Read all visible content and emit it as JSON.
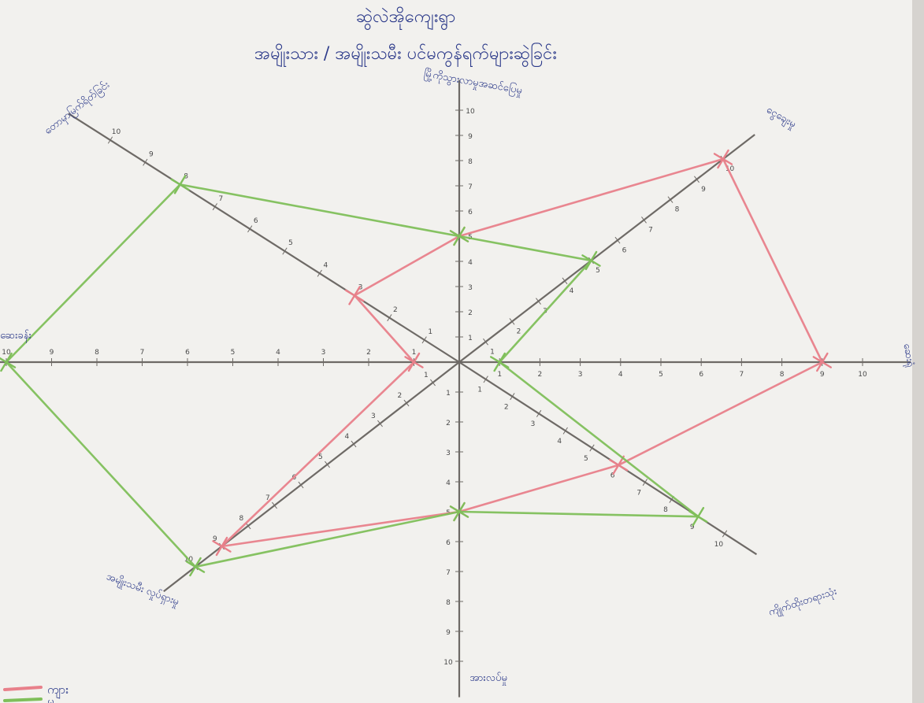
{
  "chart_data": {
    "type": "radar",
    "title": "ဆွဲလဲအိုကျေးရွာ",
    "subtitle": "အမျိုးသား / အမျိုးသမီး ပင်မကွန်ရက်များဆွဲခြင်း",
    "axis_max": 10,
    "axes": [
      "မြို့ကိုသွားလာမှုအဆင်ပြေမှု",
      "ငွေချေးမှု",
      "ဆေးရုံ",
      "ကျိုက်ထိုးတရားသုံး",
      "အားလပ်မှု",
      "အမျိုးသမီး လှုပ်ရှားမှု",
      "ဆေးခန်း",
      "တောမှာမြက်ရိတ်ခြင်း"
    ],
    "series": [
      {
        "name": "ကျား",
        "color": "#e8808a",
        "values": [
          5,
          10,
          9,
          6,
          5,
          9,
          1,
          3
        ]
      },
      {
        "name": "မ",
        "color": "#7fbf5a",
        "values": [
          5,
          5,
          1,
          9,
          5,
          10,
          10,
          8
        ]
      }
    ],
    "legend_position": "bottom-left"
  },
  "page": {
    "background": "#f2f1ee",
    "axis_color": "#6e6a66"
  }
}
